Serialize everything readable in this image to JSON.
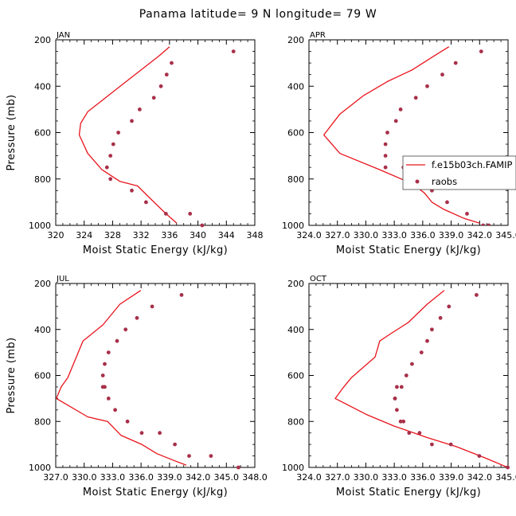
{
  "title": "Panama  latitude= 9 N longitude= 79 W",
  "colors": {
    "model": "#e8141c",
    "obs": "#a8304a",
    "axis": "#000000"
  },
  "legend": {
    "model_label": "f.e15b03ch.FAMIP",
    "obs_label": "raobs",
    "placement": "right-edge of APR panel"
  },
  "chart_data": [
    {
      "type": "line",
      "panel": "JAN",
      "xlabel": "Moist Static Energy (kJ/kg)",
      "ylabel": "Pressure (mb)",
      "xlim": [
        320,
        348
      ],
      "xticks": [
        320,
        324,
        328,
        332,
        336,
        340,
        344,
        348
      ],
      "xtick_labels": [
        "320",
        "324",
        "328",
        "332",
        "336",
        "340",
        "344",
        "348"
      ],
      "ylim": [
        200,
        1000
      ],
      "yticks": [
        200,
        400,
        600,
        800,
        1000
      ],
      "ytick_labels": [
        "200",
        "400",
        "600",
        "800",
        "1000"
      ],
      "show_ylabel": true,
      "series": [
        {
          "name": "f.e15b03ch.FAMIP",
          "style": "line",
          "x": [
            336.0,
            334.5,
            332.0,
            329.5,
            327.0,
            324.5,
            323.5,
            323.3,
            324.5,
            326.5,
            329.0,
            331.5,
            333.5,
            335.5,
            337.0
          ],
          "y": [
            230,
            270,
            330,
            390,
            450,
            510,
            560,
            610,
            690,
            760,
            810,
            830,
            890,
            950,
            990
          ]
        },
        {
          "name": "raobs",
          "style": "points",
          "x": [
            345.0,
            336.3,
            335.6,
            334.8,
            333.8,
            331.8,
            330.7,
            328.8,
            328.1,
            327.7,
            327.2,
            327.7,
            330.7,
            332.7,
            335.5,
            338.9,
            340.6
          ],
          "y": [
            250,
            300,
            350,
            400,
            450,
            500,
            550,
            600,
            650,
            700,
            750,
            800,
            850,
            900,
            950,
            950,
            1000
          ]
        }
      ]
    },
    {
      "type": "line",
      "panel": "APR",
      "xlabel": "Moist Static Energy (kJ/kg)",
      "ylabel": "",
      "xlim": [
        324.03,
        345.03
      ],
      "xticks": [
        324.03,
        327.03,
        330.03,
        333.03,
        336.03,
        339.03,
        342.03,
        345.03
      ],
      "xtick_labels": [
        "324.0",
        "327.0",
        "330.0",
        "333.0",
        "336.0",
        "339.0",
        "342.0",
        "345.0"
      ],
      "ylim": [
        200,
        1000
      ],
      "yticks": [
        200,
        400,
        600,
        800,
        1000
      ],
      "ytick_labels": [
        "200",
        "400",
        "600",
        "800",
        "1000"
      ],
      "show_ylabel": false,
      "series": [
        {
          "name": "f.e15b03ch.FAMIP",
          "style": "line",
          "x": [
            338.8,
            337.2,
            334.9,
            332.3,
            329.8,
            327.3,
            325.6,
            327.3,
            331.5,
            334.9,
            336.2,
            337.0,
            338.2,
            340.4,
            342.0
          ],
          "y": [
            230,
            270,
            330,
            380,
            440,
            520,
            610,
            690,
            760,
            820,
            860,
            900,
            930,
            970,
            990
          ]
        },
        {
          "name": "raobs",
          "style": "points",
          "x": [
            342.2,
            339.5,
            338.1,
            336.5,
            335.3,
            333.7,
            333.2,
            332.3,
            332.1,
            332.1,
            332.1,
            334.0,
            337.1,
            337.0,
            338.6,
            340.7,
            342.4,
            343.0
          ],
          "y": [
            250,
            300,
            350,
            400,
            450,
            500,
            550,
            600,
            650,
            700,
            750,
            750,
            800,
            850,
            900,
            950,
            1000,
            1000
          ]
        }
      ]
    },
    {
      "type": "line",
      "panel": "JUL",
      "xlabel": "Moist Static Energy (kJ/kg)",
      "ylabel": "Pressure (mb)",
      "xlim": [
        327.03,
        348.03
      ],
      "xticks": [
        327.03,
        330.03,
        333.03,
        336.03,
        339.03,
        342.03,
        345.03,
        348.03
      ],
      "xtick_labels": [
        "327.0",
        "330.0",
        "333.0",
        "336.0",
        "339.0",
        "342.0",
        "345.0",
        "348.0"
      ],
      "ylim": [
        200,
        1000
      ],
      "yticks": [
        200,
        400,
        600,
        800,
        1000
      ],
      "ytick_labels": [
        "200",
        "400",
        "600",
        "800",
        "1000"
      ],
      "show_ylabel": true,
      "series": [
        {
          "name": "f.e15b03ch.FAMIP",
          "style": "line",
          "x": [
            336.0,
            333.8,
            332.0,
            329.9,
            328.3,
            327.6,
            327.1,
            330.4,
            332.5,
            333.9,
            336.1,
            337.7,
            339.5,
            340.8
          ],
          "y": [
            230,
            290,
            380,
            450,
            610,
            650,
            700,
            780,
            800,
            860,
            900,
            940,
            970,
            990
          ]
        },
        {
          "name": "raobs",
          "style": "points",
          "x": [
            340.3,
            337.2,
            335.6,
            334.4,
            333.5,
            332.6,
            332.2,
            332.0,
            332.0,
            332.2,
            332.6,
            333.3,
            334.6,
            336.1,
            338.0,
            339.6,
            341.1,
            343.4,
            346.3
          ],
          "y": [
            250,
            300,
            350,
            400,
            450,
            500,
            550,
            600,
            650,
            650,
            700,
            750,
            800,
            850,
            850,
            900,
            950,
            950,
            1000
          ]
        }
      ]
    },
    {
      "type": "line",
      "panel": "OCT",
      "xlabel": "Moist Static Energy (kJ/kg)",
      "ylabel": "",
      "xlim": [
        324.03,
        345.03
      ],
      "xticks": [
        324.03,
        327.03,
        330.03,
        333.03,
        336.03,
        339.03,
        342.03,
        345.03
      ],
      "xtick_labels": [
        "324.0",
        "327.0",
        "330.0",
        "333.0",
        "336.0",
        "339.0",
        "342.0",
        "345.0"
      ],
      "ylim": [
        200,
        1000
      ],
      "yticks": [
        200,
        400,
        600,
        800,
        1000
      ],
      "ytick_labels": [
        "200",
        "400",
        "600",
        "800",
        "1000"
      ],
      "show_ylabel": false,
      "series": [
        {
          "name": "f.e15b03ch.FAMIP",
          "style": "line",
          "x": [
            338.3,
            336.5,
            334.5,
            332.6,
            331.5,
            331.0,
            328.5,
            327.7,
            326.8,
            330.1,
            333.0,
            336.5,
            339.6,
            342.7,
            345.0
          ],
          "y": [
            230,
            290,
            370,
            420,
            450,
            520,
            610,
            650,
            700,
            770,
            820,
            870,
            910,
            960,
            1000
          ]
        },
        {
          "name": "raobs",
          "style": "points",
          "x": [
            341.7,
            338.8,
            337.9,
            337.0,
            336.5,
            335.9,
            334.9,
            334.3,
            333.8,
            333.3,
            333.1,
            333.1,
            333.3,
            333.7,
            334.0,
            334.6,
            335.7,
            337.0,
            339.0,
            342.0,
            345.0
          ],
          "y": [
            250,
            300,
            350,
            400,
            450,
            500,
            550,
            600,
            650,
            650,
            700,
            700,
            750,
            800,
            800,
            850,
            850,
            900,
            900,
            950,
            1000
          ]
        }
      ]
    }
  ]
}
